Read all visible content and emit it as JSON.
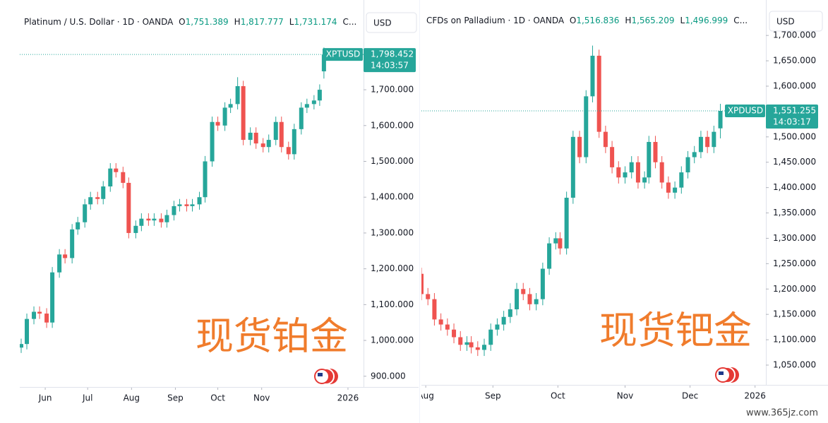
{
  "chart_data": [
    {
      "type": "candlestick",
      "header": {
        "symbol": "Platinum / U.S. Dollar · 1D · OANDA",
        "o_key": "O",
        "o_text": "1,751.389",
        "h_key": "H",
        "h_text": "1,817.777",
        "l_key": "L",
        "l_text": "1,731.174",
        "more": "C..."
      },
      "currency": "USD",
      "ticker": "XPTUSD",
      "last_price": {
        "value": 1798.452,
        "label": "1,798.452"
      },
      "countdown": "14:03:57",
      "overlay_text": "现货铂金",
      "up_color": "#26a69a",
      "down_color": "#ef5350",
      "xlim": [
        133,
        376
      ],
      "ylim": [
        870,
        1921
      ],
      "xticks": [
        {
          "value": 151,
          "label": "Jun"
        },
        {
          "value": 181,
          "label": "Jul"
        },
        {
          "value": 212,
          "label": "Aug"
        },
        {
          "value": 243,
          "label": "Sep"
        },
        {
          "value": 273,
          "label": "Oct"
        },
        {
          "value": 304,
          "label": "Nov"
        },
        {
          "value": 365,
          "label": "2026"
        }
      ],
      "yticks": [
        {
          "value": 900,
          "label": "900.000"
        },
        {
          "value": 1000,
          "label": "1,000.000"
        },
        {
          "value": 1100,
          "label": "1,100.000"
        },
        {
          "value": 1200,
          "label": "1,200.000"
        },
        {
          "value": 1300,
          "label": "1,300.000"
        },
        {
          "value": 1400,
          "label": "1,400.000"
        },
        {
          "value": 1500,
          "label": "1,500.000"
        },
        {
          "value": 1600,
          "label": "1,600.000"
        },
        {
          "value": 1700,
          "label": "1,700.000"
        }
      ],
      "x": [
        134,
        138,
        143,
        147,
        152,
        156,
        161,
        165,
        170,
        174,
        179,
        183,
        188,
        192,
        197,
        201,
        206,
        210,
        215,
        219,
        224,
        228,
        233,
        237,
        242,
        246,
        251,
        255,
        260,
        264,
        269,
        273,
        278,
        282,
        287,
        291,
        296,
        300,
        305,
        309,
        314,
        318,
        323,
        327,
        332,
        336,
        341,
        345,
        348
      ],
      "open": [
        980,
        990,
        1060,
        1080,
        1075,
        1050,
        1190,
        1240,
        1230,
        1310,
        1330,
        1380,
        1400,
        1395,
        1430,
        1480,
        1470,
        1440,
        1300,
        1320,
        1340,
        1335,
        1340,
        1330,
        1350,
        1375,
        1380,
        1375,
        1380,
        1400,
        1500,
        1610,
        1600,
        1650,
        1660,
        1710,
        1560,
        1580,
        1550,
        1540,
        1560,
        1610,
        1540,
        1520,
        1590,
        1650,
        1660,
        1670,
        1751.389
      ],
      "high": [
        1005,
        1075,
        1095,
        1095,
        1090,
        1205,
        1255,
        1255,
        1325,
        1345,
        1395,
        1415,
        1415,
        1445,
        1495,
        1495,
        1485,
        1455,
        1335,
        1355,
        1355,
        1355,
        1355,
        1365,
        1390,
        1395,
        1395,
        1395,
        1415,
        1515,
        1625,
        1625,
        1665,
        1675,
        1735,
        1725,
        1595,
        1595,
        1565,
        1575,
        1625,
        1625,
        1555,
        1605,
        1665,
        1675,
        1685,
        1715,
        1817.777
      ],
      "low": [
        965,
        975,
        1045,
        1060,
        1035,
        1035,
        1175,
        1215,
        1215,
        1295,
        1315,
        1365,
        1380,
        1380,
        1415,
        1455,
        1425,
        1285,
        1285,
        1305,
        1320,
        1320,
        1315,
        1315,
        1335,
        1360,
        1360,
        1360,
        1365,
        1385,
        1485,
        1585,
        1585,
        1635,
        1645,
        1545,
        1545,
        1535,
        1525,
        1525,
        1545,
        1525,
        1505,
        1505,
        1575,
        1635,
        1645,
        1655,
        1731.174
      ],
      "close": [
        990,
        1060,
        1080,
        1075,
        1050,
        1190,
        1240,
        1230,
        1310,
        1330,
        1380,
        1400,
        1395,
        1430,
        1480,
        1470,
        1440,
        1300,
        1320,
        1340,
        1335,
        1340,
        1330,
        1350,
        1375,
        1380,
        1375,
        1380,
        1400,
        1500,
        1610,
        1600,
        1650,
        1660,
        1710,
        1560,
        1580,
        1550,
        1540,
        1560,
        1610,
        1540,
        1520,
        1590,
        1650,
        1660,
        1670,
        1700,
        1798.452
      ]
    },
    {
      "type": "candlestick",
      "header": {
        "symbol": "CFDs on Palladium · 1D · OANDA",
        "o_key": "O",
        "o_text": "1,516.836",
        "h_key": "H",
        "h_text": "1,565.209",
        "l_key": "L",
        "l_text": "1,496.999",
        "more": "C..."
      },
      "currency": "USD",
      "ticker": "XPDUSD",
      "last_price": {
        "value": 1551.255,
        "label": "1,551.255"
      },
      "countdown": "14:03:17",
      "overlay_text": "现货钯金",
      "up_color": "#26a69a",
      "down_color": "#ef5350",
      "xlim": [
        211,
        370
      ],
      "ylim": [
        1011,
        1749
      ],
      "xticks": [
        {
          "value": 213,
          "label": "Aug"
        },
        {
          "value": 244,
          "label": "Sep"
        },
        {
          "value": 274,
          "label": "Oct"
        },
        {
          "value": 305,
          "label": "Nov"
        },
        {
          "value": 335,
          "label": "Dec"
        },
        {
          "value": 365,
          "label": "2026"
        }
      ],
      "yticks": [
        {
          "value": 1050,
          "label": "1,050.000"
        },
        {
          "value": 1100,
          "label": "1,100.000"
        },
        {
          "value": 1150,
          "label": "1,150.000"
        },
        {
          "value": 1200,
          "label": "1,200.000"
        },
        {
          "value": 1250,
          "label": "1,250.000"
        },
        {
          "value": 1300,
          "label": "1,300.000"
        },
        {
          "value": 1350,
          "label": "1,350.000"
        },
        {
          "value": 1400,
          "label": "1,400.000"
        },
        {
          "value": 1450,
          "label": "1,450.000"
        },
        {
          "value": 1500,
          "label": "1,500.000"
        },
        {
          "value": 1550,
          "label": "1,550.000"
        },
        {
          "value": 1600,
          "label": "1,600.000"
        },
        {
          "value": 1650,
          "label": "1,650.000"
        },
        {
          "value": 1700,
          "label": "1,700.000"
        }
      ],
      "x": [
        211,
        214,
        217,
        220,
        223,
        226,
        229,
        232,
        234,
        237,
        240,
        243,
        246,
        249,
        252,
        255,
        258,
        261,
        264,
        267,
        270,
        273,
        275,
        278,
        281,
        284,
        287,
        290,
        293,
        296,
        299,
        302,
        305,
        308,
        311,
        314,
        316,
        319,
        322,
        325,
        328,
        331,
        334,
        337,
        340,
        343,
        346,
        349
      ],
      "open": [
        1230,
        1190,
        1180,
        1140,
        1130,
        1120,
        1105,
        1090,
        1095,
        1085,
        1080,
        1090,
        1120,
        1130,
        1145,
        1160,
        1200,
        1190,
        1170,
        1180,
        1240,
        1290,
        1300,
        1280,
        1380,
        1500,
        1460,
        1580,
        1660,
        1510,
        1480,
        1440,
        1420,
        1430,
        1450,
        1410,
        1420,
        1490,
        1450,
        1410,
        1390,
        1400,
        1430,
        1460,
        1470,
        1500,
        1480,
        1516.836
      ],
      "high": [
        1242,
        1202,
        1192,
        1152,
        1142,
        1132,
        1117,
        1107,
        1107,
        1097,
        1102,
        1132,
        1142,
        1157,
        1172,
        1212,
        1212,
        1202,
        1192,
        1252,
        1302,
        1312,
        1312,
        1392,
        1512,
        1512,
        1592,
        1680,
        1672,
        1522,
        1492,
        1452,
        1442,
        1462,
        1462,
        1432,
        1502,
        1502,
        1462,
        1422,
        1412,
        1442,
        1472,
        1482,
        1512,
        1512,
        1522,
        1565.209
      ],
      "low": [
        1178,
        1168,
        1128,
        1118,
        1108,
        1093,
        1078,
        1078,
        1073,
        1068,
        1068,
        1078,
        1108,
        1118,
        1133,
        1148,
        1178,
        1158,
        1158,
        1168,
        1228,
        1278,
        1268,
        1268,
        1368,
        1448,
        1448,
        1568,
        1498,
        1468,
        1428,
        1408,
        1408,
        1418,
        1398,
        1398,
        1408,
        1438,
        1398,
        1378,
        1378,
        1388,
        1418,
        1448,
        1458,
        1468,
        1468,
        1496.999
      ],
      "close": [
        1190,
        1180,
        1140,
        1130,
        1120,
        1105,
        1090,
        1095,
        1085,
        1080,
        1090,
        1120,
        1130,
        1145,
        1160,
        1200,
        1190,
        1170,
        1180,
        1240,
        1290,
        1300,
        1280,
        1380,
        1500,
        1460,
        1580,
        1660,
        1510,
        1480,
        1440,
        1420,
        1430,
        1450,
        1410,
        1420,
        1490,
        1450,
        1410,
        1390,
        1400,
        1430,
        1460,
        1470,
        1500,
        1480,
        1510,
        1551.255
      ]
    }
  ],
  "watermark": "www.365jz.com"
}
